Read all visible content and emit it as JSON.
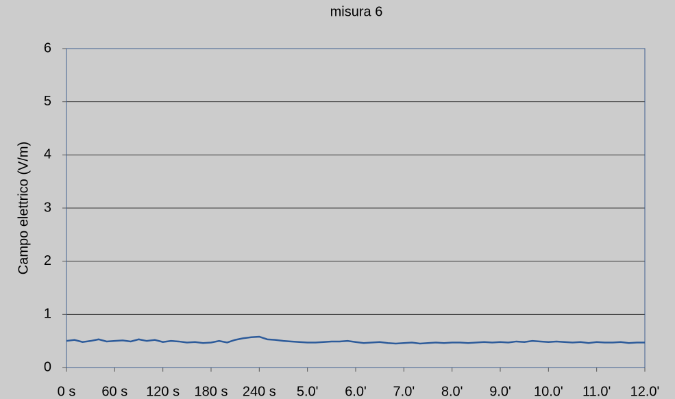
{
  "chart_data": {
    "type": "line",
    "title": "misura 6",
    "y_label": "Campo elettrico (V/m)",
    "x": [
      0,
      10,
      20,
      30,
      40,
      50,
      60,
      70,
      80,
      90,
      100,
      110,
      120,
      130,
      140,
      150,
      160,
      170,
      180,
      190,
      200,
      210,
      220,
      230,
      240,
      250,
      260,
      270,
      280,
      290,
      300,
      310,
      320,
      330,
      340,
      350,
      360,
      370,
      380,
      390,
      400,
      410,
      420,
      430,
      440,
      450,
      460,
      470,
      480,
      490,
      500,
      510,
      520,
      530,
      540,
      550,
      560,
      570,
      580,
      590,
      600,
      610,
      620,
      630,
      640,
      650,
      660,
      670,
      680,
      690,
      700,
      710,
      720
    ],
    "series": [
      {
        "name": "misura 6",
        "color": "#2d5b9a",
        "values": [
          0.5,
          0.52,
          0.48,
          0.5,
          0.53,
          0.49,
          0.5,
          0.51,
          0.49,
          0.53,
          0.5,
          0.52,
          0.48,
          0.5,
          0.49,
          0.47,
          0.48,
          0.46,
          0.47,
          0.5,
          0.47,
          0.52,
          0.55,
          0.57,
          0.58,
          0.53,
          0.52,
          0.5,
          0.49,
          0.48,
          0.47,
          0.47,
          0.48,
          0.49,
          0.49,
          0.5,
          0.48,
          0.46,
          0.47,
          0.48,
          0.46,
          0.45,
          0.46,
          0.47,
          0.45,
          0.46,
          0.47,
          0.46,
          0.47,
          0.47,
          0.46,
          0.47,
          0.48,
          0.47,
          0.48,
          0.47,
          0.49,
          0.48,
          0.5,
          0.49,
          0.48,
          0.49,
          0.48,
          0.47,
          0.48,
          0.46,
          0.48,
          0.47,
          0.47,
          0.48,
          0.46,
          0.47,
          0.47
        ]
      }
    ],
    "xlim": [
      0,
      720
    ],
    "xticks": [
      {
        "value": 0,
        "label": "0 s"
      },
      {
        "value": 60,
        "label": "60 s"
      },
      {
        "value": 120,
        "label": "120 s"
      },
      {
        "value": 180,
        "label": "180 s"
      },
      {
        "value": 240,
        "label": "240 s"
      },
      {
        "value": 300,
        "label": "5.0'"
      },
      {
        "value": 360,
        "label": "6.0'"
      },
      {
        "value": 420,
        "label": "7.0'"
      },
      {
        "value": 480,
        "label": "8.0'"
      },
      {
        "value": 540,
        "label": "9.0'"
      },
      {
        "value": 600,
        "label": "10.0'"
      },
      {
        "value": 660,
        "label": "11.0'"
      },
      {
        "value": 720,
        "label": "12.0'"
      }
    ],
    "ylim": [
      0,
      6
    ],
    "yticks": [
      0,
      1,
      2,
      3,
      4,
      5,
      6
    ],
    "grid": true
  }
}
